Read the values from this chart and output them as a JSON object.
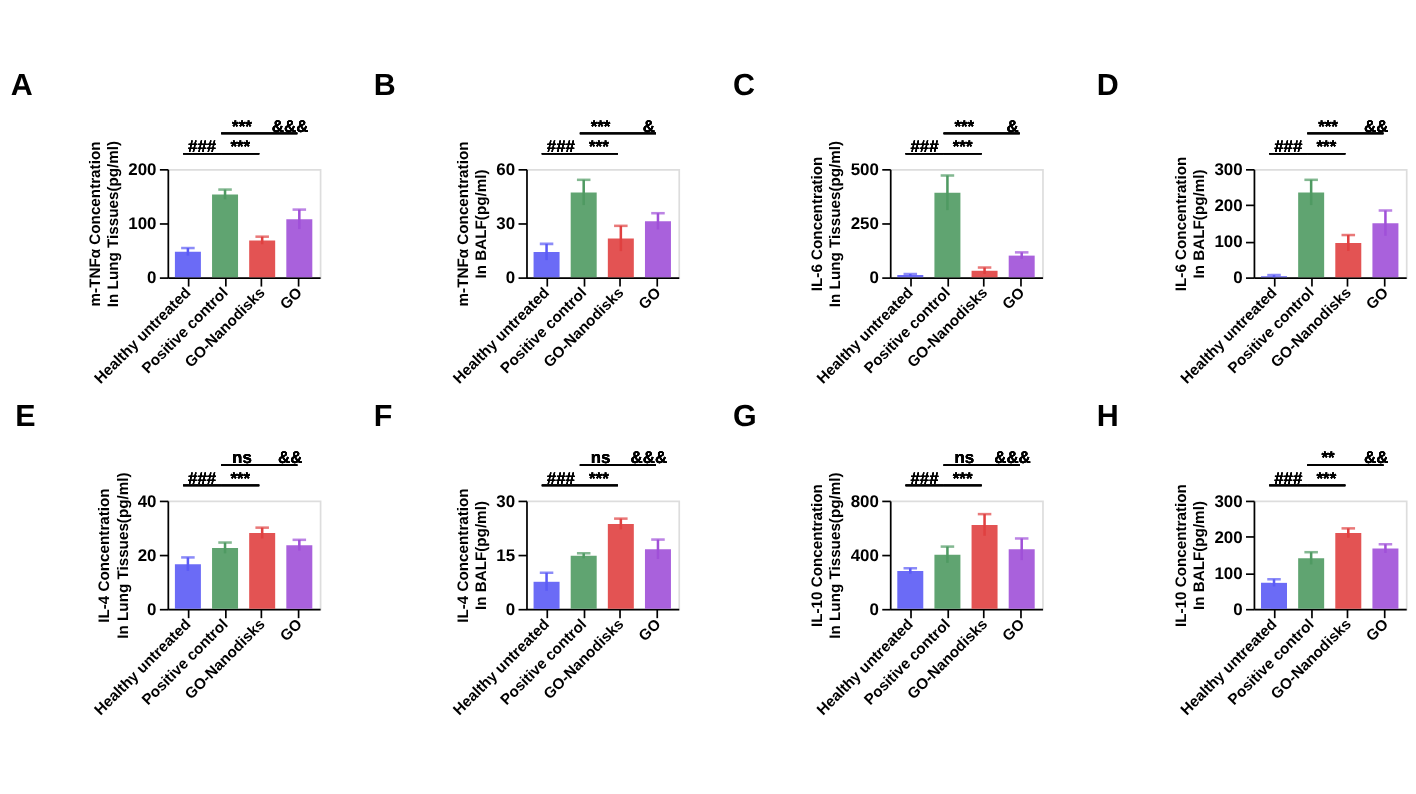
{
  "chart_data": [
    {
      "type": "bar",
      "title": "A",
      "ylabel": "m-TNFα Concentration\nIn Lung Tissues(pg/ml)",
      "categories": [
        "Healthy untreated",
        "Positive control",
        "GO-Nanodisks",
        "GO"
      ],
      "values": [
        47,
        153,
        68,
        107
      ],
      "errors": [
        7,
        9,
        7,
        18
      ],
      "colors": [
        "#5b5bf5",
        "#4f9a62",
        "#e04040",
        "#a050d8"
      ],
      "ylim": [
        0,
        200
      ],
      "yticks": [
        0,
        100,
        200
      ],
      "grid": false,
      "annotations": [
        "###",
        "***",
        "***",
        "&&&"
      ]
    },
    {
      "type": "bar",
      "title": "B",
      "ylabel": "m-TNFα Concentration\nIn BALF(pg/ml)",
      "categories": [
        "Healthy untreated",
        "Positive control",
        "GO-Nanodisks",
        "GO"
      ],
      "values": [
        14,
        47,
        21.5,
        31
      ],
      "errors": [
        4.5,
        7,
        7,
        4.5
      ],
      "colors": [
        "#5b5bf5",
        "#4f9a62",
        "#e04040",
        "#a050d8"
      ],
      "ylim": [
        0,
        60
      ],
      "yticks": [
        0,
        30,
        60
      ],
      "grid": false,
      "annotations": [
        "###",
        "***",
        "***",
        "&"
      ]
    },
    {
      "type": "bar",
      "title": "C",
      "ylabel": "IL-6 Concentration\nIn Lung Tissues(pg/ml)",
      "categories": [
        "Healthy untreated",
        "Positive control",
        "GO-Nanodisks",
        "GO"
      ],
      "values": [
        10,
        390,
        30,
        100
      ],
      "errors": [
        5,
        80,
        15,
        15
      ],
      "colors": [
        "#5b5bf5",
        "#4f9a62",
        "#e04040",
        "#a050d8"
      ],
      "ylim": [
        0,
        500
      ],
      "yticks": [
        0,
        250,
        500
      ],
      "grid": false,
      "annotations": [
        "###",
        "***",
        "***",
        "&"
      ]
    },
    {
      "type": "bar",
      "title": "D",
      "ylabel": "IL-6 Concentration\nIn BALF(pg/ml)",
      "categories": [
        "Healthy untreated",
        "Positive control",
        "GO-Nanodisks",
        "GO"
      ],
      "values": [
        3,
        235,
        95,
        150
      ],
      "errors": [
        3,
        35,
        22,
        35
      ],
      "colors": [
        "#5b5bf5",
        "#4f9a62",
        "#e04040",
        "#a050d8"
      ],
      "ylim": [
        0,
        300
      ],
      "yticks": [
        0,
        100,
        200,
        300
      ],
      "grid": false,
      "annotations": [
        "###",
        "***",
        "***",
        "&&"
      ]
    },
    {
      "type": "bar",
      "title": "E",
      "ylabel": "IL-4 Concentration\nIn Lung Tissues(pg/ml)",
      "categories": [
        "Healthy untreated",
        "Positive control",
        "GO-Nanodisks",
        "GO"
      ],
      "values": [
        16.5,
        22.5,
        28,
        23.5
      ],
      "errors": [
        2.5,
        2,
        2,
        2
      ],
      "colors": [
        "#5b5bf5",
        "#4f9a62",
        "#e04040",
        "#a050d8"
      ],
      "ylim": [
        0,
        40
      ],
      "yticks": [
        0,
        20,
        40
      ],
      "grid": false,
      "annotations": [
        "###",
        "***",
        "ns",
        "&&"
      ]
    },
    {
      "type": "bar",
      "title": "F",
      "ylabel": "IL-4 Concentration\nIn BALF(pg/ml)",
      "categories": [
        "Healthy untreated",
        "Positive control",
        "GO-Nanodisks",
        "GO"
      ],
      "values": [
        7.5,
        14.7,
        23.5,
        16.5
      ],
      "errors": [
        2.5,
        0.7,
        1.5,
        2.7
      ],
      "colors": [
        "#5b5bf5",
        "#4f9a62",
        "#e04040",
        "#a050d8"
      ],
      "ylim": [
        0,
        30
      ],
      "yticks": [
        0,
        15,
        30
      ],
      "grid": false,
      "annotations": [
        "###",
        "***",
        "ns",
        "&&&"
      ]
    },
    {
      "type": "bar",
      "title": "G",
      "ylabel": "IL-10 Concentration\nIn Lung Tissues(pg/ml)",
      "categories": [
        "Healthy untreated",
        "Positive control",
        "GO-Nanodisks",
        "GO"
      ],
      "values": [
        280,
        400,
        620,
        440
      ],
      "errors": [
        20,
        60,
        80,
        80
      ],
      "colors": [
        "#5b5bf5",
        "#4f9a62",
        "#e04040",
        "#a050d8"
      ],
      "ylim": [
        0,
        800
      ],
      "yticks": [
        0,
        400,
        800
      ],
      "grid": false,
      "annotations": [
        "###",
        "***",
        "ns",
        "&&&"
      ]
    },
    {
      "type": "bar",
      "title": "H",
      "ylabel": "IL-10 Concentration\nIn BALF(pg/ml)",
      "categories": [
        "Healthy untreated",
        "Positive control",
        "GO-Nanodisks",
        "GO"
      ],
      "values": [
        72,
        140,
        210,
        167
      ],
      "errors": [
        10,
        17,
        13,
        12
      ],
      "colors": [
        "#5b5bf5",
        "#4f9a62",
        "#e04040",
        "#a050d8"
      ],
      "ylim": [
        0,
        300
      ],
      "yticks": [
        0,
        100,
        200,
        300
      ],
      "grid": false,
      "annotations": [
        "###",
        "***",
        "**",
        "&&"
      ]
    }
  ]
}
